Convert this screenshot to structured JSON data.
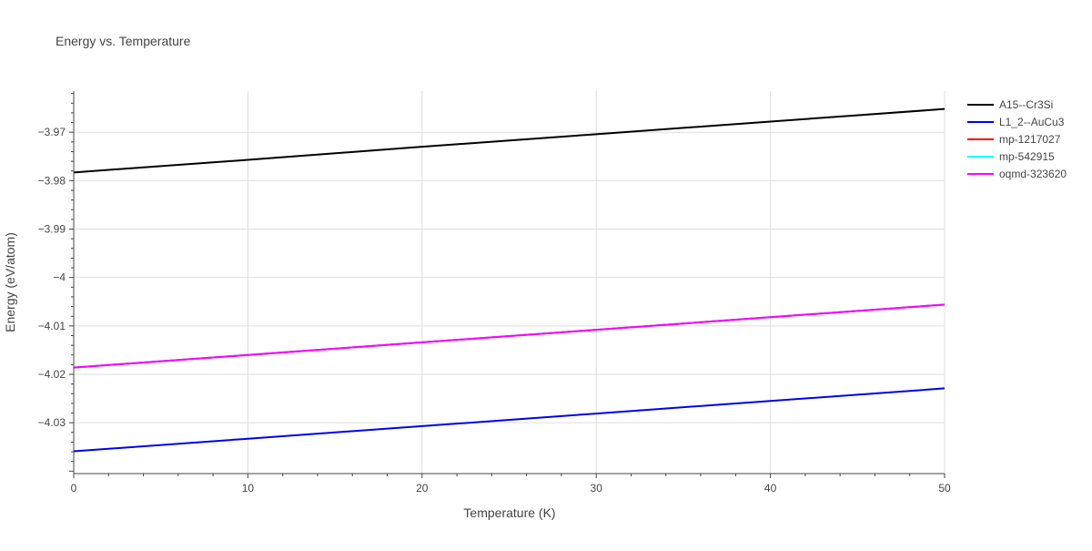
{
  "chart_data": {
    "type": "line",
    "title": "Energy vs. Temperature",
    "xlabel": "Temperature (K)",
    "ylabel": "Energy (eV/atom)",
    "xlim": [
      0,
      50
    ],
    "ylim": [
      -4.0405,
      -3.9615
    ],
    "x_ticks": [
      0,
      10,
      20,
      30,
      40,
      50
    ],
    "x_tick_labels": [
      "0",
      "10",
      "20",
      "30",
      "40",
      "50"
    ],
    "y_ticks": [
      -3.97,
      -3.98,
      -3.99,
      -4.0,
      -4.01,
      -4.02,
      -4.03
    ],
    "y_tick_labels": [
      "−3.97",
      "−3.98",
      "−3.99",
      "−4",
      "−4.01",
      "−4.02",
      "−4.03"
    ],
    "grid": true,
    "legend_position": "top-right outside",
    "series": [
      {
        "name": "A15--Cr3Si",
        "color": "#000000",
        "x": [
          0,
          10,
          20,
          30,
          40,
          50
        ],
        "y": [
          -3.9783,
          -3.9757,
          -3.973,
          -3.9704,
          -3.9678,
          -3.9652
        ]
      },
      {
        "name": "L1_2--AuCu3",
        "color": "#0000ee",
        "x": [
          0,
          10,
          20,
          30,
          40,
          50
        ],
        "y": [
          -4.0359,
          -4.0333,
          -4.0307,
          -4.0281,
          -4.0255,
          -4.0229
        ]
      },
      {
        "name": "mp-1217027",
        "color": "#ff0000",
        "x": [
          0,
          10,
          20,
          30,
          40,
          50
        ],
        "y": [
          -4.0186,
          -4.016,
          -4.0134,
          -4.0108,
          -4.0082,
          -4.0056
        ]
      },
      {
        "name": "mp-542915",
        "color": "#00ffff",
        "x": [
          0,
          10,
          20,
          30,
          40,
          50
        ],
        "y": [
          -4.0186,
          -4.016,
          -4.0134,
          -4.0108,
          -4.0082,
          -4.0056
        ]
      },
      {
        "name": "oqmd-323620",
        "color": "#ff00ff",
        "x": [
          0,
          10,
          20,
          30,
          40,
          50
        ],
        "y": [
          -4.0186,
          -4.016,
          -4.0134,
          -4.0108,
          -4.0082,
          -4.0056
        ]
      }
    ]
  }
}
